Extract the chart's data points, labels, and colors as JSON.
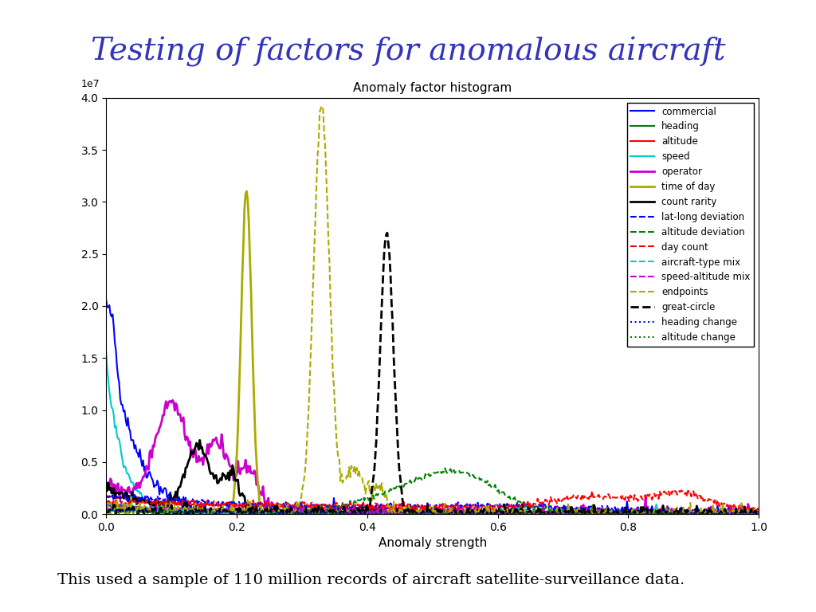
{
  "title": "Testing of factors for anomalous aircraft",
  "subtitle": "Anomaly factor histogram",
  "xlabel": "Anomaly strength",
  "xlim": [
    0.0,
    1.0
  ],
  "ylim": [
    0.0,
    40000000.0
  ],
  "title_fontsize": 28,
  "title_color": "#3333bb",
  "subtitle_fontsize": 11,
  "footnote": "This used a sample of 110 million records of aircraft satellite-surveillance data.",
  "footnote_fontsize": 14,
  "series": [
    {
      "label": "commercial",
      "color": "#0000ff",
      "linestyle": "-",
      "linewidth": 1.5
    },
    {
      "label": "heading",
      "color": "#008000",
      "linestyle": "-",
      "linewidth": 1.5
    },
    {
      "label": "altitude",
      "color": "#ff0000",
      "linestyle": "-",
      "linewidth": 1.5
    },
    {
      "label": "speed",
      "color": "#00cccc",
      "linestyle": "-",
      "linewidth": 1.5
    },
    {
      "label": "operator",
      "color": "#cc00cc",
      "linestyle": "-",
      "linewidth": 2.0
    },
    {
      "label": "time of day",
      "color": "#aaaa00",
      "linestyle": "-",
      "linewidth": 2.0
    },
    {
      "label": "count rarity",
      "color": "#000000",
      "linestyle": "-",
      "linewidth": 2.0
    },
    {
      "label": "lat-long deviation",
      "color": "#0000ff",
      "linestyle": "--",
      "linewidth": 1.5
    },
    {
      "label": "altitude deviation",
      "color": "#008000",
      "linestyle": "--",
      "linewidth": 1.5
    },
    {
      "label": "day count",
      "color": "#ff0000",
      "linestyle": "--",
      "linewidth": 1.5
    },
    {
      "label": "aircraft-type mix",
      "color": "#00cccc",
      "linestyle": "--",
      "linewidth": 1.5
    },
    {
      "label": "speed-altitude mix",
      "color": "#cc00cc",
      "linestyle": "--",
      "linewidth": 1.5
    },
    {
      "label": "endpoints",
      "color": "#aaaa00",
      "linestyle": "--",
      "linewidth": 1.5
    },
    {
      "label": "great-circle",
      "color": "#000000",
      "linestyle": "--",
      "linewidth": 2.0
    },
    {
      "label": "heading change",
      "color": "#0000ff",
      "linestyle": ":",
      "linewidth": 1.5
    },
    {
      "label": "altitude change",
      "color": "#008000",
      "linestyle": ":",
      "linewidth": 1.5
    }
  ]
}
